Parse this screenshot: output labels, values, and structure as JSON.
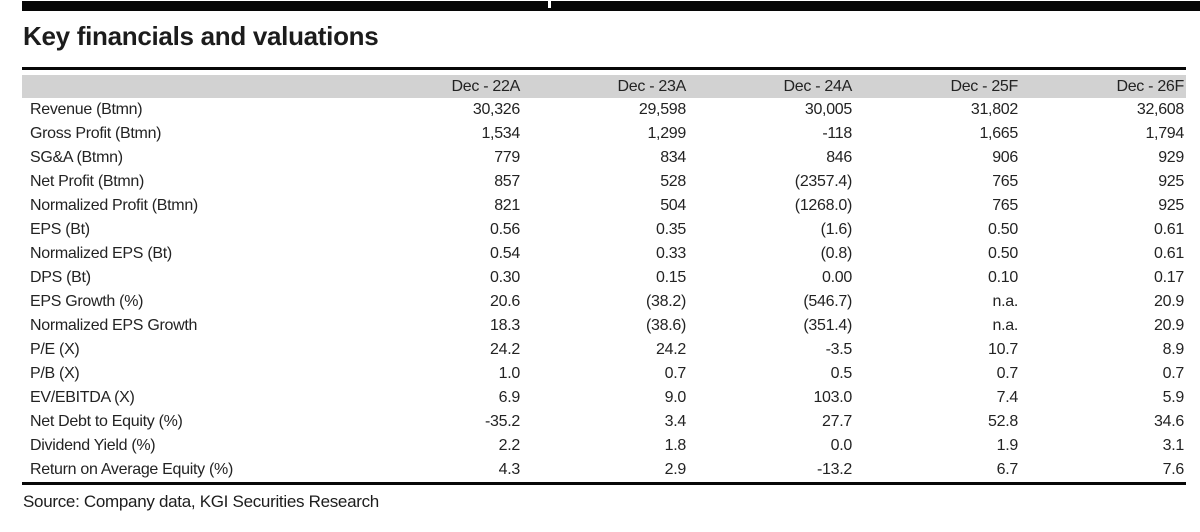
{
  "page": {
    "title": "Key financials and valuations",
    "source": "Source: Company data, KGI Securities Research"
  },
  "table": {
    "columns": [
      "Dec - 22A",
      "Dec - 23A",
      "Dec - 24A",
      "Dec - 25F",
      "Dec - 26F"
    ],
    "rows": [
      {
        "label": "Revenue (Btmn)",
        "values": [
          "30,326",
          "29,598",
          "30,005",
          "31,802",
          "32,608"
        ]
      },
      {
        "label": "Gross Profit (Btmn)",
        "values": [
          "1,534",
          "1,299",
          "-118",
          "1,665",
          "1,794"
        ]
      },
      {
        "label": "SG&A (Btmn)",
        "values": [
          "779",
          "834",
          "846",
          "906",
          "929"
        ]
      },
      {
        "label": "Net Profit (Btmn)",
        "values": [
          "857",
          "528",
          "(2357.4)",
          "765",
          "925"
        ]
      },
      {
        "label": "Normalized Profit (Btmn)",
        "values": [
          "821",
          "504",
          "(1268.0)",
          "765",
          "925"
        ]
      },
      {
        "label": "EPS (Bt)",
        "values": [
          "0.56",
          "0.35",
          "(1.6)",
          "0.50",
          "0.61"
        ]
      },
      {
        "label": "Normalized EPS (Bt)",
        "values": [
          "0.54",
          "0.33",
          "(0.8)",
          "0.50",
          "0.61"
        ]
      },
      {
        "label": "DPS (Bt)",
        "values": [
          "0.30",
          "0.15",
          "0.00",
          "0.10",
          "0.17"
        ]
      },
      {
        "label": "EPS Growth (%)",
        "values": [
          "20.6",
          "(38.2)",
          "(546.7)",
          "n.a.",
          "20.9"
        ]
      },
      {
        "label": "Normalized EPS Growth",
        "values": [
          "18.3",
          "(38.6)",
          "(351.4)",
          "n.a.",
          "20.9"
        ]
      },
      {
        "label": "P/E (X)",
        "values": [
          "24.2",
          "24.2",
          "-3.5",
          "10.7",
          "8.9"
        ]
      },
      {
        "label": "P/B (X)",
        "values": [
          "1.0",
          "0.7",
          "0.5",
          "0.7",
          "0.7"
        ]
      },
      {
        "label": "EV/EBITDA (X)",
        "values": [
          "6.9",
          "9.0",
          "103.0",
          "7.4",
          "5.9"
        ]
      },
      {
        "label": "Net Debt to Equity (%)",
        "values": [
          "-35.2",
          "3.4",
          "27.7",
          "52.8",
          "34.6"
        ]
      },
      {
        "label": "Dividend Yield (%)",
        "values": [
          "2.2",
          "1.8",
          "0.0",
          "1.9",
          "3.1"
        ]
      },
      {
        "label": "Return on Average Equity (%)",
        "values": [
          "4.3",
          "2.9",
          "-13.2",
          "6.7",
          "7.6"
        ]
      }
    ]
  },
  "colors": {
    "header_row_bg": "#d2d2d2",
    "rule": "#070707",
    "text": "#232323"
  }
}
